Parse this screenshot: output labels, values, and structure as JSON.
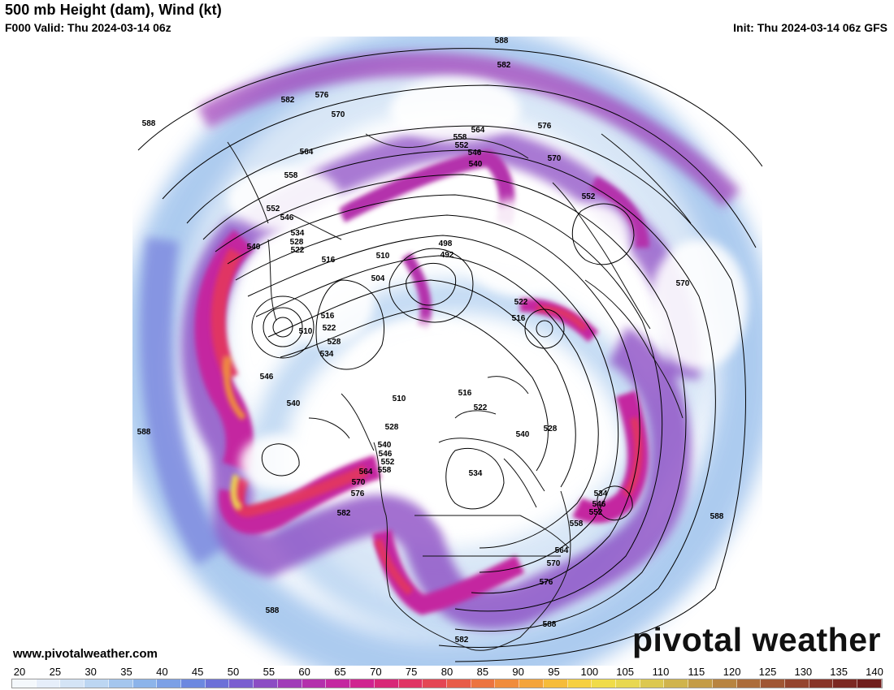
{
  "header": {
    "title": "500 mb Height (dam), Wind (kt)",
    "valid": "F000 Valid: Thu 2024-03-14 06z",
    "init": "Init: Thu 2024-03-14 06z GFS"
  },
  "footer": {
    "website": "www.pivotalweather.com",
    "brand": "pivotal weather"
  },
  "colorbar": {
    "ticks": [
      "20",
      "25",
      "30",
      "35",
      "40",
      "45",
      "50",
      "55",
      "60",
      "65",
      "70",
      "75",
      "80",
      "85",
      "90",
      "95",
      "100",
      "105",
      "110",
      "115",
      "120",
      "125",
      "130",
      "135",
      "140"
    ],
    "colors": [
      "#f4f8fc",
      "#e6eefa",
      "#d4e4f6",
      "#bcd6f2",
      "#a4c6ee",
      "#8cb4ea",
      "#7ca0e6",
      "#6c88e0",
      "#6c70d8",
      "#7a5ed0",
      "#8c4cc4",
      "#a03cb8",
      "#b430ac",
      "#c428a0",
      "#d02490",
      "#d82878",
      "#e03464",
      "#e44654",
      "#e85c48",
      "#ec7440",
      "#f08c3c",
      "#f4a43a",
      "#f6bc3a",
      "#f6d040",
      "#f0dc48",
      "#e8d850",
      "#dcc850",
      "#d0b44c",
      "#c49c46",
      "#b88440",
      "#ac6c3a",
      "#a05634",
      "#94442e",
      "#883428",
      "#7c2822",
      "#701e1c"
    ]
  },
  "contour_labels": [
    {
      "text": "588",
      "id": "c1"
    },
    {
      "text": "582",
      "id": "c2"
    },
    {
      "text": "576",
      "id": "c3"
    },
    {
      "text": "570",
      "id": "c4"
    },
    {
      "text": "564",
      "id": "c5"
    },
    {
      "text": "558",
      "id": "c6"
    },
    {
      "text": "552",
      "id": "c7"
    },
    {
      "text": "546",
      "id": "c8"
    },
    {
      "text": "540",
      "id": "c9"
    },
    {
      "text": "534",
      "id": "c10"
    },
    {
      "text": "528",
      "id": "c11"
    },
    {
      "text": "522",
      "id": "c12"
    },
    {
      "text": "516",
      "id": "c13"
    },
    {
      "text": "510",
      "id": "c14"
    },
    {
      "text": "504",
      "id": "c15"
    },
    {
      "text": "498",
      "id": "c16"
    },
    {
      "text": "492",
      "id": "c17"
    }
  ],
  "map_labels": [
    {
      "t": "588",
      "k": "a1"
    },
    {
      "t": "582",
      "k": "a2"
    },
    {
      "t": "588",
      "k": "a3"
    },
    {
      "t": "582",
      "k": "a4"
    },
    {
      "t": "576",
      "k": "a5"
    },
    {
      "t": "570",
      "k": "a6"
    },
    {
      "t": "576",
      "k": "a7"
    },
    {
      "t": "564",
      "k": "a8"
    },
    {
      "t": "558",
      "k": "a9"
    },
    {
      "t": "552",
      "k": "a10"
    },
    {
      "t": "546",
      "k": "a11"
    },
    {
      "t": "540",
      "k": "a12"
    },
    {
      "t": "570",
      "k": "a13"
    },
    {
      "t": "552",
      "k": "a14"
    },
    {
      "t": "564",
      "k": "a15"
    },
    {
      "t": "558",
      "k": "a16"
    },
    {
      "t": "552",
      "k": "a17"
    },
    {
      "t": "546",
      "k": "a18"
    },
    {
      "t": "534",
      "k": "a19"
    },
    {
      "t": "528",
      "k": "a20"
    },
    {
      "t": "522",
      "k": "a21"
    },
    {
      "t": "540",
      "k": "a22"
    },
    {
      "t": "516",
      "k": "a23"
    },
    {
      "t": "510",
      "k": "a24"
    },
    {
      "t": "498",
      "k": "a25"
    },
    {
      "t": "492",
      "k": "a26"
    },
    {
      "t": "504",
      "k": "a27"
    },
    {
      "t": "522",
      "k": "a28"
    },
    {
      "t": "516",
      "k": "a29"
    },
    {
      "t": "570",
      "k": "a30"
    },
    {
      "t": "516",
      "k": "a31"
    },
    {
      "t": "510",
      "k": "a32"
    },
    {
      "t": "522",
      "k": "a33"
    },
    {
      "t": "528",
      "k": "a34"
    },
    {
      "t": "534",
      "k": "a35"
    },
    {
      "t": "546",
      "k": "a36"
    },
    {
      "t": "540",
      "k": "a37"
    },
    {
      "t": "510",
      "k": "a38"
    },
    {
      "t": "516",
      "k": "a39"
    },
    {
      "t": "522",
      "k": "a40"
    },
    {
      "t": "528",
      "k": "a41"
    },
    {
      "t": "528",
      "k": "a42"
    },
    {
      "t": "540",
      "k": "a43"
    },
    {
      "t": "588",
      "k": "a44"
    },
    {
      "t": "540",
      "k": "a45"
    },
    {
      "t": "546",
      "k": "a46"
    },
    {
      "t": "552",
      "k": "a47"
    },
    {
      "t": "558",
      "k": "a48"
    },
    {
      "t": "564",
      "k": "a49"
    },
    {
      "t": "570",
      "k": "a50"
    },
    {
      "t": "576",
      "k": "a51"
    },
    {
      "t": "534",
      "k": "a52"
    },
    {
      "t": "582",
      "k": "a53"
    },
    {
      "t": "534",
      "k": "a54"
    },
    {
      "t": "546",
      "k": "a55"
    },
    {
      "t": "552",
      "k": "a56"
    },
    {
      "t": "558",
      "k": "a57"
    },
    {
      "t": "588",
      "k": "a58"
    },
    {
      "t": "564",
      "k": "a59"
    },
    {
      "t": "570",
      "k": "a60"
    },
    {
      "t": "576",
      "k": "a61"
    },
    {
      "t": "588",
      "k": "a62"
    },
    {
      "t": "582",
      "k": "a63"
    },
    {
      "t": "588",
      "k": "a64"
    }
  ],
  "colors": {
    "jet_core": "#f0dc48",
    "jet_strong": "#e03464",
    "jet_mid": "#c428a0",
    "jet_weak": "#8c4cc4",
    "jet_edge": "#7ca0e6",
    "calm": "#ffffff"
  }
}
